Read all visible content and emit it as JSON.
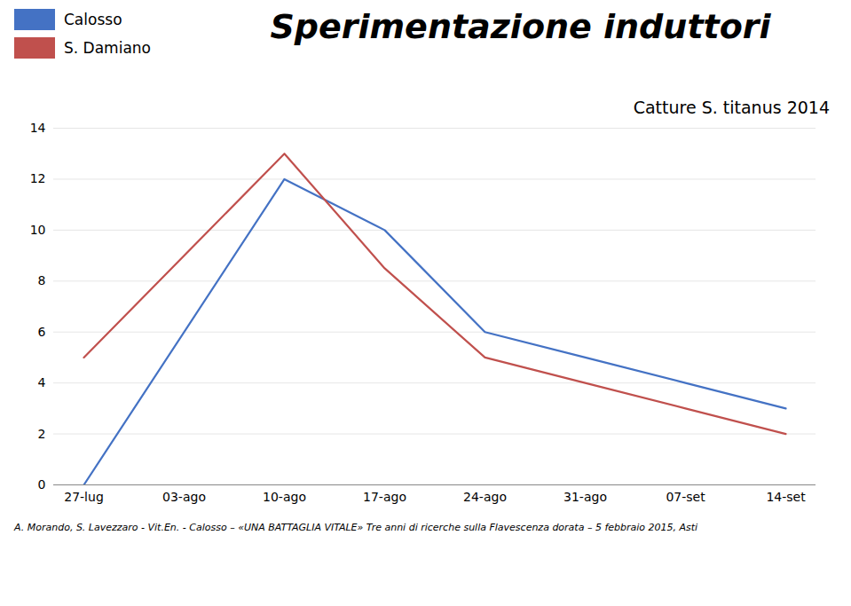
{
  "chart_data": {
    "type": "line",
    "title": "Sperimentazione induttori",
    "subtitle": "Catture  S. titanus 2014",
    "caption": "A. Morando, S. Lavezzaro - Vit.En. - Calosso  – «UNA BATTAGLIA VITALE» Tre anni di ricerche sulla Flavescenza dorata – 5 febbraio 2015, Asti",
    "categories": [
      "27-lug",
      "03-ago",
      "10-ago",
      "17-ago",
      "24-ago",
      "31-ago",
      "07-set",
      "14-set"
    ],
    "series": [
      {
        "name": "Calosso",
        "color": "#4472C4",
        "x": [
          "27-lug",
          "10-ago",
          "17-ago",
          "24-ago",
          "31-ago",
          "07-set",
          "14-set"
        ],
        "values": [
          0,
          12,
          10,
          6,
          5,
          4,
          3
        ]
      },
      {
        "name": "S. Damiano",
        "color": "#C0504D",
        "x": [
          "27-lug",
          "10-ago",
          "17-ago",
          "24-ago",
          "31-ago",
          "07-set",
          "14-set"
        ],
        "values": [
          5,
          13,
          8.5,
          5,
          4,
          3,
          2
        ]
      }
    ],
    "ylim": [
      0,
      14
    ],
    "yticks": [
      0,
      2,
      4,
      6,
      8,
      10,
      12,
      14
    ],
    "grid": true,
    "legend": "top-left"
  }
}
